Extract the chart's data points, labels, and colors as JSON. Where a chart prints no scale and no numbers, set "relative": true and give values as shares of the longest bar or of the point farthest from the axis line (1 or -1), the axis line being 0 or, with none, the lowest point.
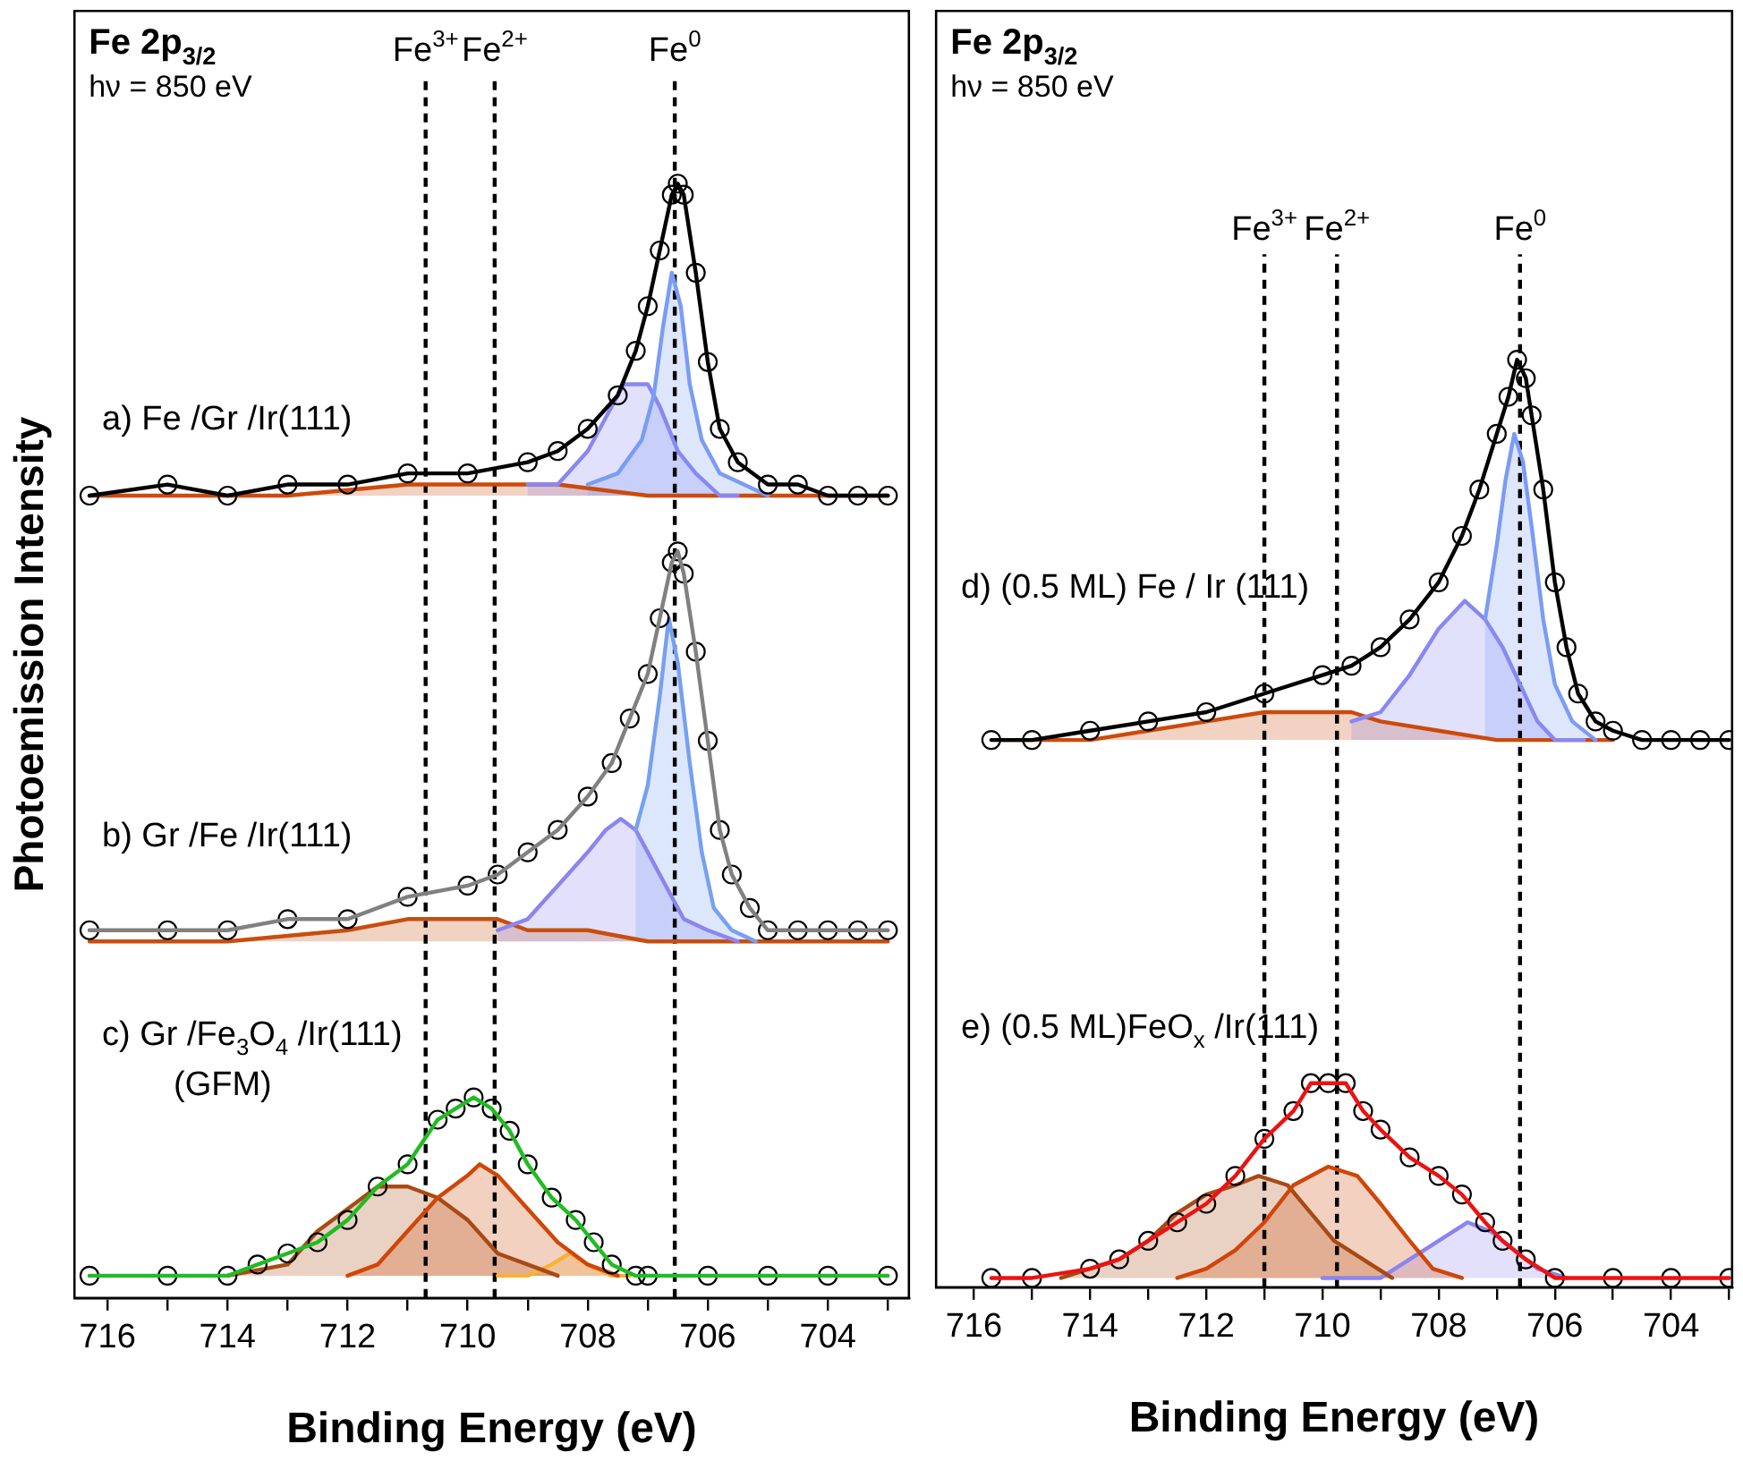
{
  "chart_data": [
    {
      "type": "line",
      "relative": true,
      "title": "Fe 2p$_{3/2}$",
      "xlabel": "Binding Energy (eV)",
      "ylabel": "Photoemission Intensity",
      "xlim": [
        716.55,
        702.65
      ],
      "xticks": [
        716,
        {
          "value": 715,
          "label": null
        },
        714,
        {
          "value": 713,
          "label": null
        },
        712,
        {
          "value": 711,
          "label": null
        },
        710,
        {
          "value": 709,
          "label": null
        },
        708,
        {
          "value": 707,
          "label": null
        },
        706,
        {
          "value": 705,
          "label": null
        },
        704,
        {
          "value": 703,
          "label": null
        }
      ],
      "annotations": [
        "hν = 850 eV",
        "a) Fe /Gr /Ir(111)",
        "b) Gr /Fe /Ir(111)",
        "c) Gr /Fe$_{3}$O$_{4}$ /Ir(111)",
        "(GFM)"
      ],
      "ref_lines": [
        {
          "axis": "x",
          "value": 710.7,
          "label": "Fe$^{3+}$",
          "color": "#000000",
          "line_style": "dashed"
        },
        {
          "axis": "x",
          "value": 709.55,
          "label": "Fe$^{2+}$",
          "color": "#000000",
          "line_style": "dashed"
        },
        {
          "axis": "x",
          "value": 706.55,
          "label": "Fe$^{0}$",
          "color": "#000000",
          "line_style": "dashed"
        }
      ],
      "series": [
        {
          "type": "area",
          "color": "#cc4a0a",
          "x": [
            716.3,
            713,
            711,
            710,
            709.5,
            708.5,
            707,
            704,
            703
          ],
          "values": [
            0.72,
            0.72,
            0.73,
            0.73,
            0.73,
            0.73,
            0.72,
            0.72,
            0.72
          ],
          "marker": "none"
        },
        {
          "type": "area",
          "color": "#8888f2",
          "x": [
            709,
            708.5,
            708,
            707.7,
            707.4,
            707.2,
            707,
            706.8,
            706.5,
            706.2,
            705.8,
            705.5
          ],
          "values": [
            0.73,
            0.73,
            0.76,
            0.79,
            0.82,
            0.82,
            0.82,
            0.8,
            0.76,
            0.74,
            0.72,
            0.72
          ],
          "marker": "none"
        },
        {
          "type": "area",
          "color": "#7a9cf4",
          "x": [
            708,
            707.5,
            707.1,
            706.9,
            706.75,
            706.6,
            706.45,
            706.3,
            706.1,
            705.8,
            705.4,
            705
          ],
          "values": [
            0.73,
            0.74,
            0.77,
            0.81,
            0.87,
            0.92,
            0.89,
            0.82,
            0.77,
            0.74,
            0.73,
            0.72
          ],
          "marker": "none"
        },
        {
          "type": "scatter",
          "color": "#000000",
          "marker": "circle",
          "x": [
            716.3,
            715,
            714,
            713,
            712,
            711,
            710,
            709,
            708.5,
            708,
            707.5,
            707.2,
            707,
            706.8,
            706.6,
            706.5,
            706.4,
            706.2,
            706,
            705.8,
            705.5,
            705,
            704.5,
            704,
            703.5,
            703
          ],
          "values": [
            0.72,
            0.73,
            0.72,
            0.73,
            0.73,
            0.74,
            0.74,
            0.75,
            0.76,
            0.78,
            0.81,
            0.85,
            0.89,
            0.94,
            0.99,
            1,
            0.99,
            0.92,
            0.84,
            0.78,
            0.75,
            0.73,
            0.73,
            0.72,
            0.72,
            0.72
          ]
        },
        {
          "type": "line",
          "color": "#000000",
          "marker": "none",
          "x": [
            716.3,
            715,
            714,
            713,
            712,
            711,
            710,
            709,
            708.5,
            708,
            707.5,
            707.2,
            707,
            706.8,
            706.6,
            706.5,
            706.4,
            706.2,
            706,
            705.8,
            705.5,
            705,
            704.5,
            704,
            703.5,
            703
          ],
          "values": [
            0.72,
            0.73,
            0.72,
            0.73,
            0.73,
            0.74,
            0.74,
            0.75,
            0.76,
            0.78,
            0.81,
            0.85,
            0.89,
            0.94,
            0.99,
            1,
            0.99,
            0.92,
            0.84,
            0.78,
            0.75,
            0.73,
            0.73,
            0.72,
            0.72,
            0.72
          ]
        },
        {
          "type": "area",
          "color": "#c84e0e",
          "x": [
            716.3,
            714,
            712,
            711,
            710,
            709.5,
            709,
            708,
            707,
            703
          ],
          "values": [
            0.32,
            0.32,
            0.33,
            0.34,
            0.34,
            0.34,
            0.33,
            0.33,
            0.32,
            0.32
          ],
          "marker": "none"
        },
        {
          "type": "area",
          "color": "#8c84ee",
          "x": [
            709.5,
            709,
            708.5,
            708,
            707.7,
            707.45,
            707.2,
            707,
            706.7,
            706.4,
            706,
            705.5
          ],
          "values": [
            0.33,
            0.34,
            0.37,
            0.4,
            0.42,
            0.43,
            0.42,
            0.4,
            0.37,
            0.34,
            0.33,
            0.32
          ],
          "marker": "none"
        },
        {
          "type": "area",
          "color": "#76a0f0",
          "x": [
            707.2,
            707,
            706.8,
            706.65,
            706.5,
            706.3,
            706.1,
            705.9,
            705.6,
            705.2
          ],
          "values": [
            0.42,
            0.46,
            0.54,
            0.61,
            0.57,
            0.48,
            0.4,
            0.35,
            0.33,
            0.32
          ],
          "marker": "none"
        },
        {
          "type": "scatter",
          "color": "#000000",
          "marker": "circle",
          "x": [
            716.3,
            715,
            714,
            713,
            712,
            711,
            710,
            709.5,
            709,
            708.5,
            708,
            707.6,
            707.3,
            707,
            706.8,
            706.6,
            706.5,
            706.4,
            706.2,
            706,
            705.8,
            705.6,
            705.3,
            705,
            704.5,
            704,
            703.5,
            703
          ],
          "values": [
            0.33,
            0.33,
            0.33,
            0.34,
            0.34,
            0.36,
            0.37,
            0.38,
            0.4,
            0.42,
            0.45,
            0.48,
            0.52,
            0.56,
            0.61,
            0.66,
            0.67,
            0.65,
            0.58,
            0.5,
            0.42,
            0.38,
            0.35,
            0.33,
            0.33,
            0.33,
            0.33,
            0.33
          ]
        },
        {
          "type": "line",
          "color": "#808080",
          "marker": "none",
          "x": [
            716.3,
            715,
            714,
            713,
            712,
            711,
            710,
            709.5,
            709,
            708.5,
            708,
            707.6,
            707.3,
            707,
            706.8,
            706.6,
            706.5,
            706.4,
            706.2,
            706,
            705.8,
            705.6,
            705.3,
            705,
            704.5,
            704,
            703.5,
            703
          ],
          "values": [
            0.33,
            0.33,
            0.33,
            0.34,
            0.34,
            0.36,
            0.37,
            0.38,
            0.4,
            0.42,
            0.45,
            0.48,
            0.52,
            0.56,
            0.61,
            0.66,
            0.67,
            0.65,
            0.58,
            0.5,
            0.42,
            0.38,
            0.35,
            0.33,
            0.33,
            0.33,
            0.33,
            0.33
          ]
        },
        {
          "type": "area",
          "color": "#f5b335",
          "x": [
            709.5,
            709,
            708.6,
            708.3,
            708,
            707.6,
            707.3
          ],
          "values": [
            0.02,
            0.02,
            0.03,
            0.04,
            0.03,
            0.02,
            0.02
          ],
          "marker": "none"
        },
        {
          "type": "area",
          "color": "#a84a14",
          "x": [
            714,
            713,
            712.5,
            712,
            711.5,
            711,
            710.5,
            710,
            709.5,
            709,
            708.5
          ],
          "values": [
            0.02,
            0.03,
            0.06,
            0.08,
            0.1,
            0.1,
            0.09,
            0.07,
            0.04,
            0.03,
            0.02
          ],
          "marker": "none"
        },
        {
          "type": "area",
          "color": "#d04608",
          "x": [
            712,
            711.5,
            711,
            710.5,
            710,
            709.8,
            709.5,
            709,
            708.5,
            708,
            707.5
          ],
          "values": [
            0.02,
            0.03,
            0.06,
            0.09,
            0.11,
            0.12,
            0.11,
            0.08,
            0.05,
            0.03,
            0.02
          ],
          "marker": "none"
        },
        {
          "type": "scatter",
          "color": "#000000",
          "marker": "circle",
          "x": [
            716.3,
            715,
            714,
            713.5,
            713,
            712.5,
            712,
            711.5,
            711,
            710.5,
            710.2,
            709.9,
            709.6,
            709.3,
            709,
            708.6,
            708.2,
            707.9,
            707.6,
            707.2,
            707,
            706,
            705,
            704,
            703
          ],
          "values": [
            0.02,
            0.02,
            0.02,
            0.03,
            0.04,
            0.05,
            0.07,
            0.1,
            0.12,
            0.16,
            0.17,
            0.18,
            0.17,
            0.15,
            0.12,
            0.09,
            0.07,
            0.05,
            0.03,
            0.02,
            0.02,
            0.02,
            0.02,
            0.02,
            0.02
          ]
        },
        {
          "type": "line",
          "color": "#22bb22",
          "marker": "none",
          "x": [
            716.3,
            715,
            714,
            713.5,
            713,
            712.5,
            712,
            711.5,
            711,
            710.5,
            710.2,
            709.9,
            709.6,
            709.3,
            709,
            708.6,
            708.2,
            707.9,
            707.6,
            707.2,
            707,
            706,
            705,
            704,
            703
          ],
          "values": [
            0.02,
            0.02,
            0.02,
            0.03,
            0.04,
            0.05,
            0.07,
            0.1,
            0.12,
            0.16,
            0.17,
            0.18,
            0.17,
            0.15,
            0.12,
            0.09,
            0.07,
            0.05,
            0.03,
            0.02,
            0.02,
            0.02,
            0.02,
            0.02,
            0.02
          ]
        }
      ]
    },
    {
      "type": "line",
      "relative": true,
      "title": "Fe 2p$_{3/2}$",
      "xlabel": "Binding Energy (eV)",
      "xlim": [
        716.65,
        702.95
      ],
      "xticks": [
        716,
        {
          "value": 715,
          "label": null
        },
        714,
        {
          "value": 713,
          "label": null
        },
        712,
        {
          "value": 711,
          "label": null
        },
        710,
        {
          "value": 709,
          "label": null
        },
        708,
        {
          "value": 707,
          "label": null
        },
        706,
        {
          "value": 705,
          "label": null
        },
        704,
        {
          "value": 703,
          "label": null
        }
      ],
      "annotations": [
        "hν = 850 eV",
        "d) (0.5 ML) Fe / Ir (111)",
        "e) (0.5 ML)FeO$_{x}$ /Ir(111)"
      ],
      "ref_lines": [
        {
          "axis": "x",
          "value": 711.0,
          "label": "Fe$^{3+}$",
          "color": "#000000",
          "line_style": "dashed"
        },
        {
          "axis": "x",
          "value": 709.75,
          "label": "Fe$^{2+}$",
          "color": "#000000",
          "line_style": "dashed"
        },
        {
          "axis": "x",
          "value": 706.6,
          "label": "Fe$^{0}$",
          "color": "#000000",
          "line_style": "dashed"
        }
      ],
      "series": [
        {
          "type": "area",
          "color": "#cc4a0a",
          "x": [
            715.5,
            714,
            713,
            712,
            711,
            710.1,
            709.5,
            709,
            708,
            707,
            705
          ],
          "values": [
            0.59,
            0.59,
            0.6,
            0.61,
            0.62,
            0.62,
            0.62,
            0.61,
            0.6,
            0.59,
            0.59
          ],
          "marker": "none"
        },
        {
          "type": "area",
          "color": "#8888f2",
          "x": [
            709.5,
            709,
            708.5,
            708,
            707.55,
            707.2,
            706.9,
            706.6,
            706.3,
            706,
            705.5
          ],
          "values": [
            0.61,
            0.62,
            0.66,
            0.71,
            0.74,
            0.72,
            0.69,
            0.65,
            0.61,
            0.59,
            0.59
          ],
          "marker": "none"
        },
        {
          "type": "area",
          "color": "#7a9cf4",
          "x": [
            707.2,
            707,
            706.85,
            706.7,
            706.55,
            706.4,
            706.2,
            706,
            705.7,
            705.3
          ],
          "values": [
            0.72,
            0.8,
            0.87,
            0.92,
            0.89,
            0.82,
            0.72,
            0.65,
            0.61,
            0.59
          ],
          "marker": "none"
        },
        {
          "type": "scatter",
          "color": "#000000",
          "marker": "circle",
          "x": [
            715.7,
            715,
            714,
            713,
            712,
            711,
            710,
            709.5,
            709,
            708.5,
            708,
            707.6,
            707.3,
            707,
            706.8,
            706.65,
            706.5,
            706.4,
            706.2,
            706,
            705.8,
            705.6,
            705.3,
            705,
            704.5,
            704,
            703.5,
            703
          ],
          "values": [
            0.59,
            0.59,
            0.6,
            0.61,
            0.62,
            0.64,
            0.66,
            0.67,
            0.69,
            0.72,
            0.76,
            0.81,
            0.86,
            0.92,
            0.96,
            1,
            0.98,
            0.94,
            0.86,
            0.76,
            0.69,
            0.64,
            0.61,
            0.6,
            0.59,
            0.59,
            0.59,
            0.59
          ]
        },
        {
          "type": "line",
          "color": "#000000",
          "marker": "none",
          "x": [
            715.7,
            715,
            714,
            713,
            712,
            711,
            710,
            709.5,
            709,
            708.5,
            708,
            707.6,
            707.3,
            707,
            706.8,
            706.65,
            706.5,
            706.4,
            706.2,
            706,
            705.8,
            705.6,
            705.3,
            705,
            704.5,
            704,
            703.5,
            703
          ],
          "values": [
            0.59,
            0.59,
            0.6,
            0.61,
            0.62,
            0.64,
            0.66,
            0.67,
            0.69,
            0.72,
            0.76,
            0.81,
            0.86,
            0.92,
            0.96,
            1,
            0.98,
            0.94,
            0.86,
            0.76,
            0.69,
            0.64,
            0.61,
            0.6,
            0.59,
            0.59,
            0.59,
            0.59
          ]
        },
        {
          "type": "area",
          "color": "#8c84ee",
          "x": [
            710,
            709,
            708.5,
            708,
            707.5,
            707.1,
            706.7,
            706.3,
            705.8
          ],
          "values": [
            0.01,
            0.01,
            0.03,
            0.05,
            0.07,
            0.06,
            0.04,
            0.02,
            0.01
          ],
          "marker": "none"
        },
        {
          "type": "area",
          "color": "#a84a14",
          "x": [
            714.5,
            713.5,
            713,
            712.5,
            712,
            711.5,
            711.1,
            710.6,
            710.2,
            709.8,
            709.3,
            708.8
          ],
          "values": [
            0.01,
            0.03,
            0.05,
            0.08,
            0.1,
            0.11,
            0.12,
            0.11,
            0.08,
            0.05,
            0.03,
            0.01
          ],
          "marker": "none"
        },
        {
          "type": "area",
          "color": "#d04608",
          "x": [
            712.5,
            712,
            711.5,
            711,
            710.5,
            709.9,
            709.4,
            709,
            708.5,
            708.1,
            707.6
          ],
          "values": [
            0.01,
            0.02,
            0.04,
            0.07,
            0.11,
            0.13,
            0.12,
            0.09,
            0.05,
            0.02,
            0.01
          ],
          "marker": "none"
        },
        {
          "type": "scatter",
          "color": "#000000",
          "marker": "circle",
          "x": [
            715.7,
            715,
            714,
            713.5,
            713,
            712.5,
            712,
            711.5,
            711,
            710.5,
            710.2,
            709.9,
            709.6,
            709.3,
            709,
            708.5,
            708,
            707.6,
            707.2,
            706.9,
            706.5,
            706,
            705,
            704,
            703
          ],
          "values": [
            0.01,
            0.01,
            0.02,
            0.03,
            0.05,
            0.07,
            0.09,
            0.12,
            0.16,
            0.19,
            0.22,
            0.22,
            0.22,
            0.19,
            0.17,
            0.14,
            0.12,
            0.1,
            0.07,
            0.05,
            0.03,
            0.01,
            0.01,
            0.01,
            0.01
          ]
        },
        {
          "type": "line",
          "color": "#ee1111",
          "marker": "none",
          "x": [
            715.7,
            715,
            714,
            713.5,
            713,
            712.5,
            712,
            711.5,
            711,
            710.5,
            710.2,
            709.9,
            709.6,
            709.3,
            709,
            708.5,
            708,
            707.6,
            707.2,
            706.9,
            706.5,
            706,
            705,
            704,
            703
          ],
          "values": [
            0.01,
            0.01,
            0.02,
            0.03,
            0.05,
            0.07,
            0.09,
            0.12,
            0.16,
            0.19,
            0.22,
            0.22,
            0.22,
            0.19,
            0.17,
            0.14,
            0.12,
            0.1,
            0.07,
            0.05,
            0.03,
            0.01,
            0.01,
            0.01,
            0.01
          ]
        }
      ]
    }
  ]
}
